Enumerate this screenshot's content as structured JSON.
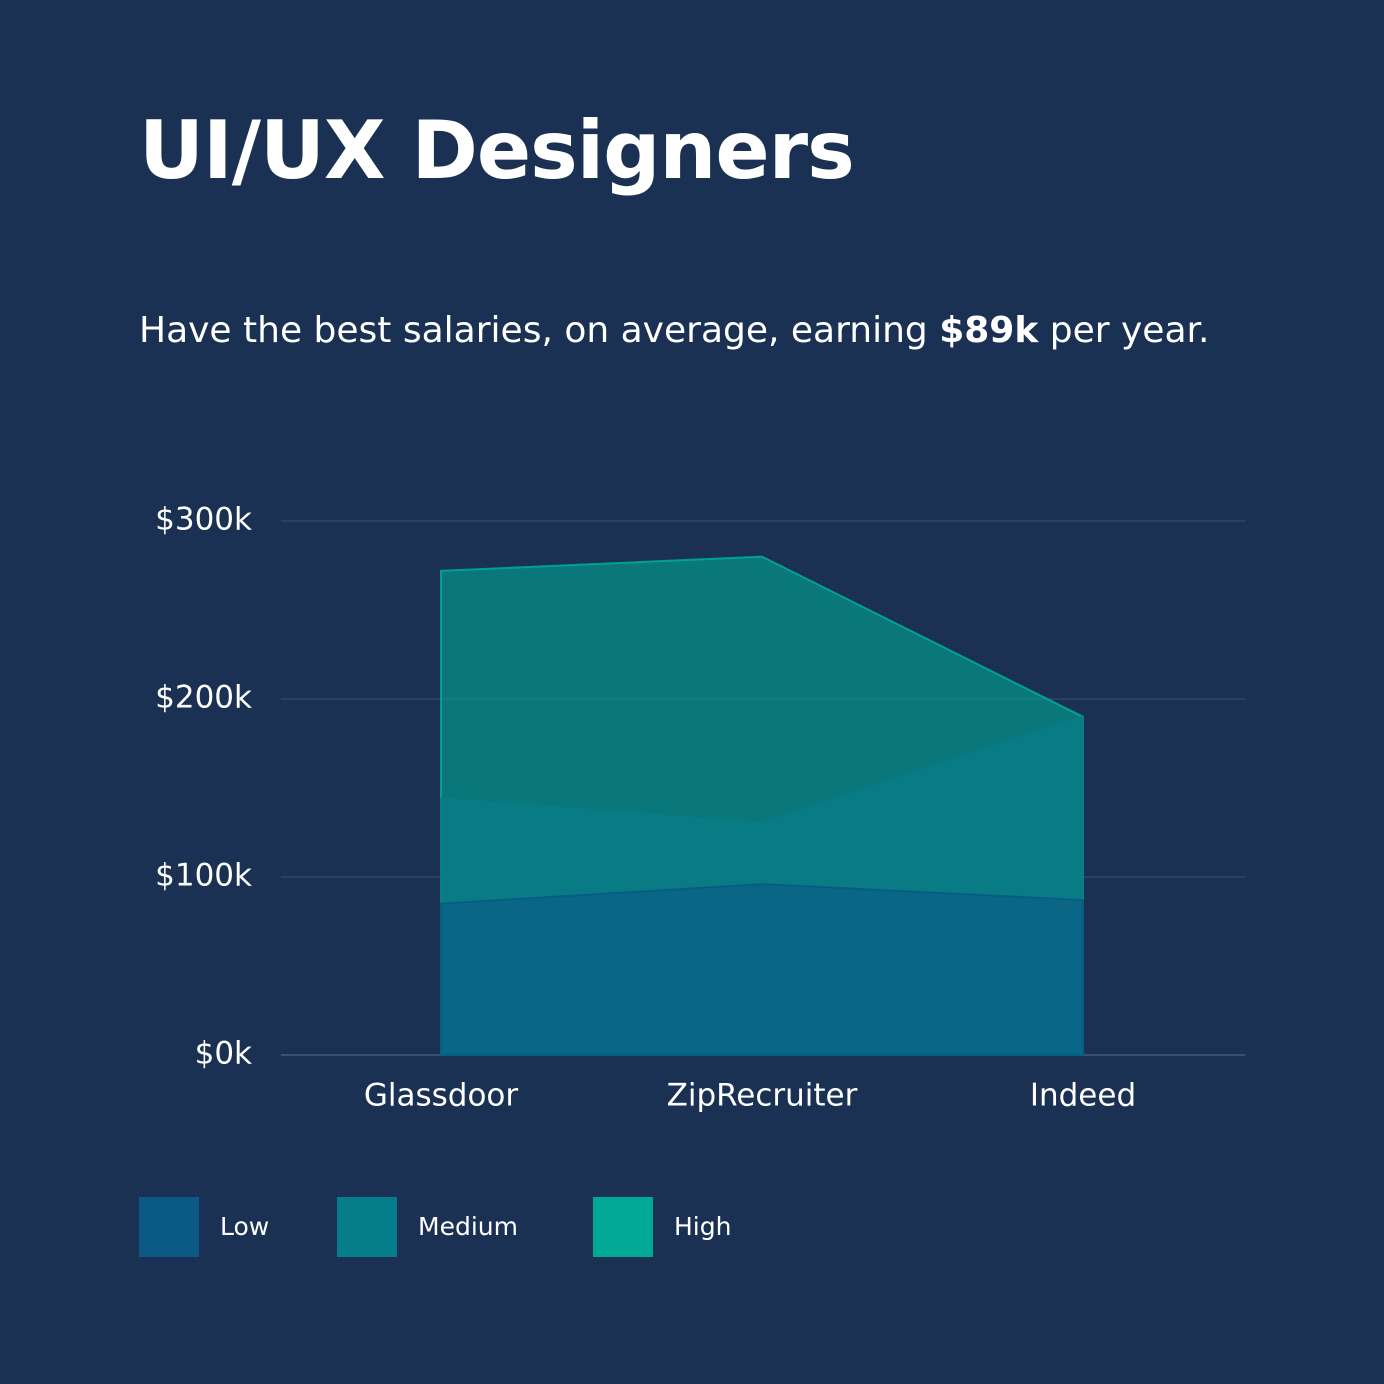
{
  "chart_data": {
    "type": "area",
    "title": "UI/UX Designers",
    "subtitle": [
      "Have the best salaries, on average, earning ",
      "$89k",
      " per year."
    ],
    "categories": [
      "Glassdoor",
      "ZipRecruiter",
      "Indeed"
    ],
    "series": [
      {
        "name": "Low",
        "color": "#0a5a85",
        "values": [
          85000,
          96000,
          87000
        ]
      },
      {
        "name": "Medium",
        "color": "#067d8a",
        "values": [
          144000,
          130000,
          190000
        ]
      },
      {
        "name": "High",
        "color": "#00a896",
        "values": [
          272000,
          280000,
          190000
        ]
      }
    ],
    "ylim": [
      0,
      300000
    ],
    "yticks": [
      {
        "value": 0,
        "label": "$0k"
      },
      {
        "value": 100000,
        "label": "$100k"
      },
      {
        "value": 200000,
        "label": "$200k"
      },
      {
        "value": 300000,
        "label": "$300k"
      }
    ],
    "grid": true
  }
}
